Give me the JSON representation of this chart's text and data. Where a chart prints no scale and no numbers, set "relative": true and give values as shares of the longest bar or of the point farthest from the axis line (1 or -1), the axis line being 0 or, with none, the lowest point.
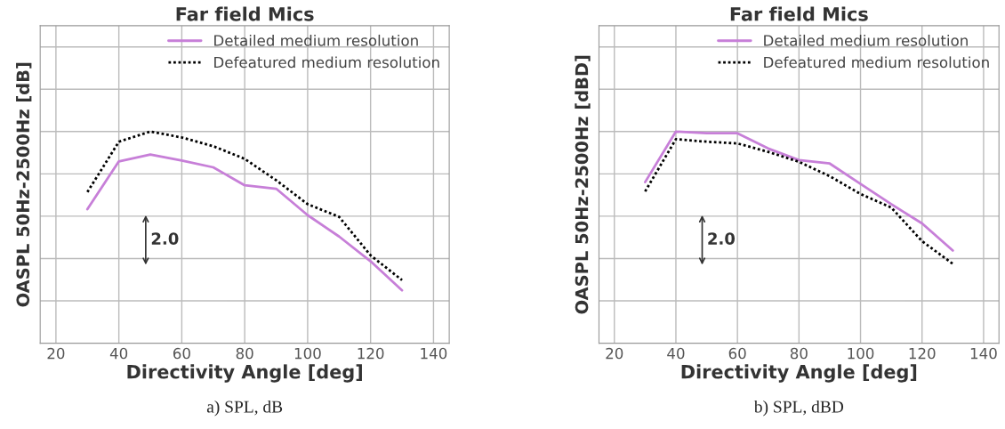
{
  "chart_data": [
    {
      "type": "line",
      "title": "Far field Mics",
      "xlabel": "Directivity Angle [deg]",
      "ylabel": "OASPL 50Hz-2500Hz [dB]",
      "relative": true,
      "x": [
        30,
        40,
        50,
        60,
        70,
        80,
        90,
        100,
        110,
        120,
        130
      ],
      "series": [
        {
          "name": "Detailed medium resolution",
          "color": "#c77fd8",
          "line_style": "solid",
          "values": [
            0.633,
            0.859,
            0.891,
            0.863,
            0.831,
            0.746,
            0.73,
            0.605,
            0.504,
            0.387,
            0.25
          ]
        },
        {
          "name": "Defeatured medium resolution",
          "color": "#000000",
          "line_style": "dotted",
          "values": [
            0.714,
            0.952,
            1,
            0.972,
            0.931,
            0.871,
            0.77,
            0.657,
            0.597,
            0.415,
            0.298
          ]
        }
      ],
      "xlim": [
        15,
        145
      ],
      "xticks": [
        20,
        40,
        60,
        80,
        100,
        120,
        140
      ],
      "grid": true,
      "legend": "top right",
      "annotations": [
        "2.0",
        "a) SPL, dB"
      ]
    },
    {
      "type": "line",
      "title": "Far field Mics",
      "xlabel": "Directivity Angle [deg]",
      "ylabel": "OASPL 50Hz-2500Hz [dBD]",
      "relative": true,
      "x": [
        30,
        40,
        50,
        60,
        70,
        80,
        90,
        100,
        110,
        120,
        130
      ],
      "series": [
        {
          "name": "Detailed medium resolution",
          "color": "#c77fd8",
          "line_style": "solid",
          "values": [
            0.761,
            1,
            0.992,
            0.992,
            0.92,
            0.865,
            0.849,
            0.753,
            0.657,
            0.566,
            0.438
          ]
        },
        {
          "name": "Defeatured medium resolution",
          "color": "#000000",
          "line_style": "dotted",
          "values": [
            0.717,
            0.964,
            0.952,
            0.944,
            0.904,
            0.857,
            0.789,
            0.705,
            0.641,
            0.482,
            0.375
          ]
        }
      ],
      "xlim": [
        15,
        145
      ],
      "xticks": [
        20,
        40,
        60,
        80,
        100,
        120,
        140
      ],
      "grid": true,
      "legend": "top right",
      "annotations": [
        "2.0",
        "b) SPL, dBD"
      ]
    }
  ]
}
